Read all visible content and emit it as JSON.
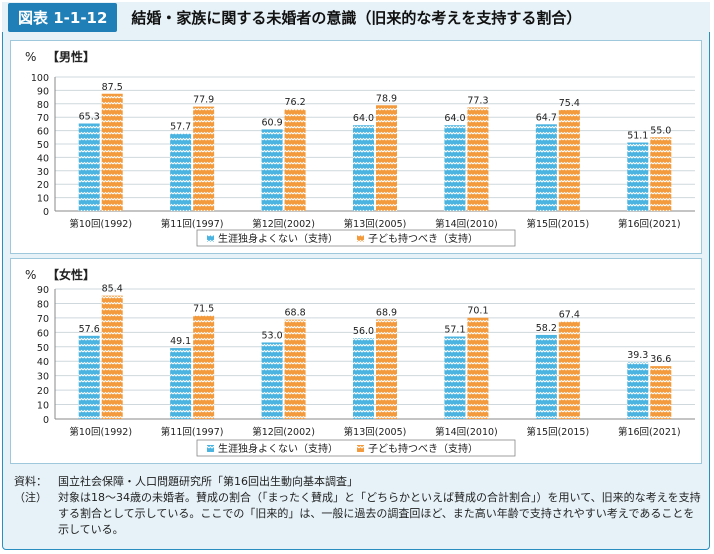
{
  "header": {
    "fig_label": "図表 1-1-12",
    "title": "結婚・家族に関する未婚者の意識（旧来的な考えを支持する割合）"
  },
  "colors": {
    "blue": "#4bb3e0",
    "orange": "#f39a3c",
    "accent": "#1f7fb6"
  },
  "chart_data": [
    {
      "type": "bar",
      "title": "【男性】",
      "ylabel": "%",
      "ylim": [
        0,
        100
      ],
      "yticks": [
        0,
        10,
        20,
        30,
        40,
        50,
        60,
        70,
        80,
        90,
        100
      ],
      "grid": true,
      "legend": "bottom",
      "categories": [
        "第10回(1992)",
        "第11回(1997)",
        "第12回(2002)",
        "第13回(2005)",
        "第14回(2010)",
        "第15回(2015)",
        "第16回(2021)"
      ],
      "series": [
        {
          "name": "生涯独身よくない（支持）",
          "values": [
            65.3,
            57.7,
            60.9,
            64.0,
            64.0,
            64.7,
            51.1
          ]
        },
        {
          "name": "子ども持つべき（支持）",
          "values": [
            87.5,
            77.9,
            76.2,
            78.9,
            77.3,
            75.4,
            55.0
          ]
        }
      ]
    },
    {
      "type": "bar",
      "title": "【女性】",
      "ylabel": "%",
      "ylim": [
        0,
        90
      ],
      "yticks": [
        0,
        10,
        20,
        30,
        40,
        50,
        60,
        70,
        80,
        90
      ],
      "grid": true,
      "legend": "bottom",
      "categories": [
        "第10回(1992)",
        "第11回(1997)",
        "第12回(2002)",
        "第13回(2005)",
        "第14回(2010)",
        "第15回(2015)",
        "第16回(2021)"
      ],
      "series": [
        {
          "name": "生涯独身よくない（支持）",
          "values": [
            57.6,
            49.1,
            53.0,
            56.0,
            57.1,
            58.2,
            39.3
          ]
        },
        {
          "name": "子ども持つべき（支持）",
          "values": [
            85.4,
            71.5,
            68.8,
            68.9,
            70.1,
            67.4,
            36.6
          ]
        }
      ]
    }
  ],
  "notes": {
    "source_key": "資料：",
    "source": "国立社会保障・人口問題研究所「第16回出生動向基本調査」",
    "note_key": "（注）",
    "note": "対象は18〜34歳の未婚者。賛成の割合（「まったく賛成」と「どちらかといえば賛成の合計割合」）を用いて、旧来的な考えを支持する割合として示している。ここでの「旧来的」は、一般に過去の調査回ほど、また高い年齢で支持されやすい考えであることを示している。"
  }
}
